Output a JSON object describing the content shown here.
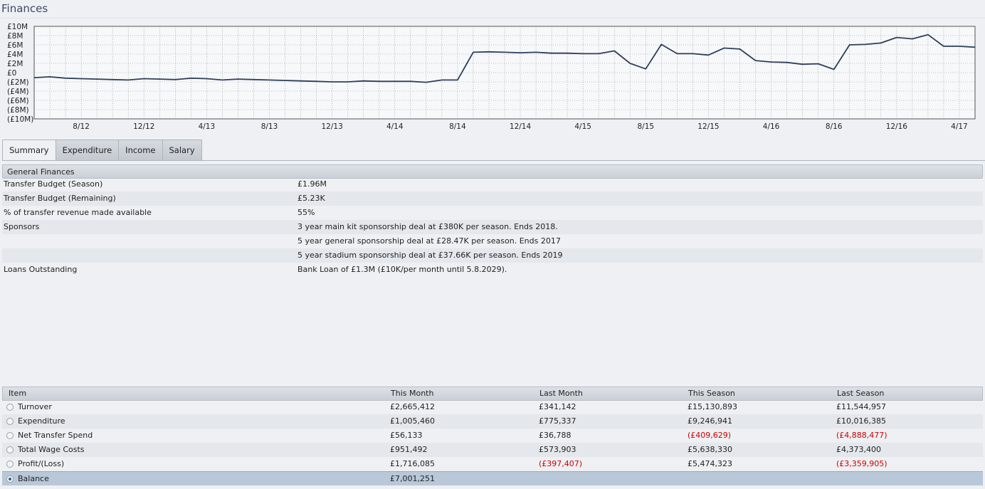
{
  "page_title": "Finances",
  "chart_data": {
    "type": "line",
    "title": "",
    "xlabel": "",
    "ylabel": "",
    "y_tick_labels": [
      "£10M",
      "£8M",
      "£6M",
      "£4M",
      "£2M",
      "£0",
      "(£2M)",
      "(£4M)",
      "(£6M)",
      "(£8M)",
      "(£10M)"
    ],
    "y_ticks": [
      10,
      8,
      6,
      4,
      2,
      0,
      -2,
      -4,
      -6,
      -8,
      -10
    ],
    "ylim": [
      -10,
      10
    ],
    "x_tick_labels": [
      "8/12",
      "12/12",
      "4/13",
      "8/13",
      "12/13",
      "4/14",
      "8/14",
      "12/14",
      "4/15",
      "8/15",
      "12/15",
      "4/16",
      "8/16",
      "12/16",
      "4/17"
    ],
    "x_tick_index": [
      3,
      7,
      11,
      15,
      19,
      23,
      27,
      31,
      35,
      39,
      43,
      47,
      51,
      55,
      59
    ],
    "grid": true,
    "series": [
      {
        "color": "#2e3f5c",
        "values": [
          -1.1,
          -0.9,
          -1.2,
          -1.3,
          -1.4,
          -1.5,
          -1.6,
          -1.3,
          -1.4,
          -1.5,
          -1.2,
          -1.3,
          -1.6,
          -1.4,
          -1.5,
          -1.6,
          -1.7,
          -1.8,
          -1.9,
          -2.0,
          -2.0,
          -1.8,
          -1.9,
          -1.9,
          -1.9,
          -2.1,
          -1.6,
          -1.6,
          4.4,
          4.5,
          4.4,
          4.3,
          4.4,
          4.2,
          4.2,
          4.1,
          4.1,
          4.7,
          2.0,
          0.8,
          6.1,
          4.1,
          4.1,
          3.8,
          5.3,
          5.1,
          2.6,
          2.3,
          2.2,
          1.8,
          1.9,
          0.7,
          6.0,
          6.1,
          6.4,
          7.6,
          7.3,
          8.2,
          5.7,
          5.7,
          5.5
        ]
      }
    ]
  },
  "tabs": [
    {
      "label": "Summary"
    },
    {
      "label": "Expenditure"
    },
    {
      "label": "Income"
    },
    {
      "label": "Salary"
    }
  ],
  "general": {
    "heading": "General Finances",
    "rows": [
      {
        "label": "Transfer Budget (Season)",
        "value": "£1.96M"
      },
      {
        "label": "Transfer Budget (Remaining)",
        "value": "£5.23K"
      },
      {
        "label": "% of transfer revenue made available",
        "value": "55%"
      },
      {
        "label": "Sponsors",
        "value": "3 year main kit sponsorship deal at £380K per season. Ends 2018."
      },
      {
        "label": "",
        "value": "5 year general sponsorship deal at £28.47K per season. Ends 2017"
      },
      {
        "label": "",
        "value": "5 year stadium sponsorship deal at £37.66K per season. Ends 2019"
      },
      {
        "label": "Loans Outstanding",
        "value": "Bank Loan of £1.3M (£10K/per month until 5.8.2029)."
      }
    ]
  },
  "table": {
    "headers": [
      "Item",
      "This Month",
      "Last Month",
      "This Season",
      "Last Season"
    ],
    "rows": [
      {
        "item": "Turnover",
        "this_month": "£2,665,412",
        "last_month": "£341,142",
        "this_season": "£15,130,893",
        "last_season": "£11,544,957"
      },
      {
        "item": "Expenditure",
        "this_month": "£1,005,460",
        "last_month": "£775,337",
        "this_season": "£9,246,941",
        "last_season": "£10,016,385"
      },
      {
        "item": "Net Transfer Spend",
        "this_month": "£56,133",
        "last_month": "£36,788",
        "this_season": "(£409,629)",
        "last_season": "(£4,888,477)"
      },
      {
        "item": "Total Wage Costs",
        "this_month": "£951,492",
        "last_month": "£573,903",
        "this_season": "£5,638,330",
        "last_season": "£4,373,400"
      },
      {
        "item": "Profit/(Loss)",
        "this_month": "£1,716,085",
        "last_month": "(£397,407)",
        "this_season": "£5,474,323",
        "last_season": "(£3,359,905)"
      },
      {
        "item": "Balance",
        "this_month": "£7,001,251",
        "last_month": "",
        "this_season": "",
        "last_season": ""
      }
    ]
  }
}
